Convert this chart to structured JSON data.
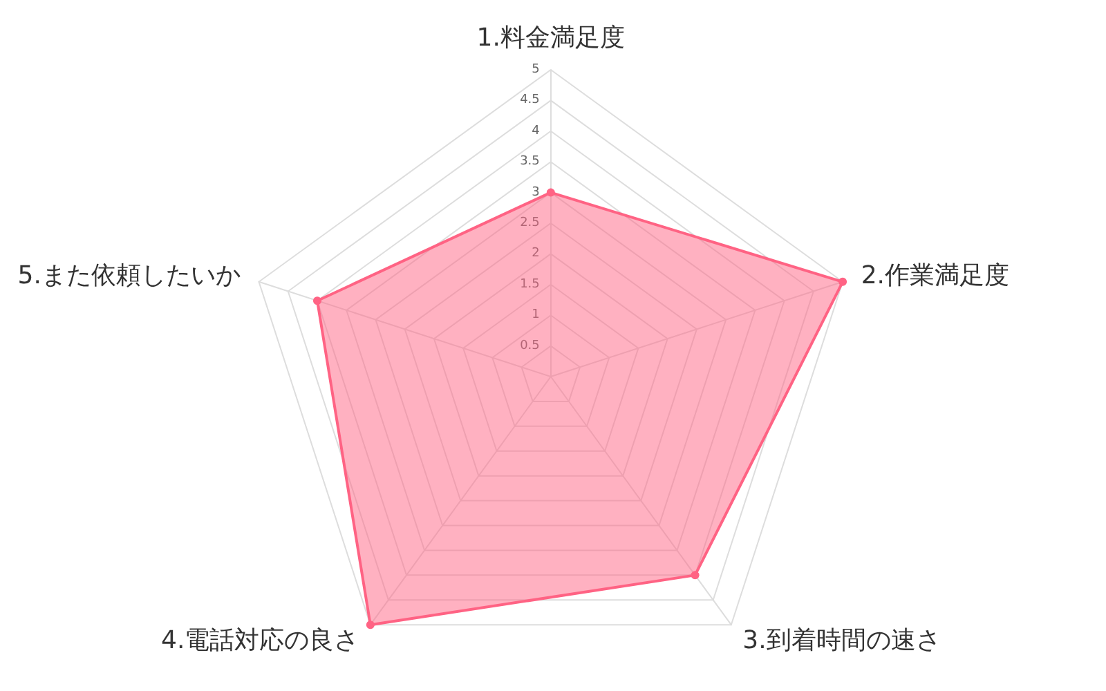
{
  "chart_data": {
    "type": "radar",
    "categories": [
      "1.料金満足度",
      "2.作業満足度",
      "3.到着時間の速さ",
      "4.電話対応の良さ",
      "5.また依頼したいか"
    ],
    "series": [
      {
        "color": "#ff6384",
        "values": [
          3,
          5,
          4,
          5,
          4
        ]
      }
    ],
    "ylim": [
      0,
      5
    ],
    "yticks": [
      0.5,
      1,
      1.5,
      2,
      2.5,
      3,
      3.5,
      4,
      4.5,
      5
    ],
    "marker": "circle"
  }
}
